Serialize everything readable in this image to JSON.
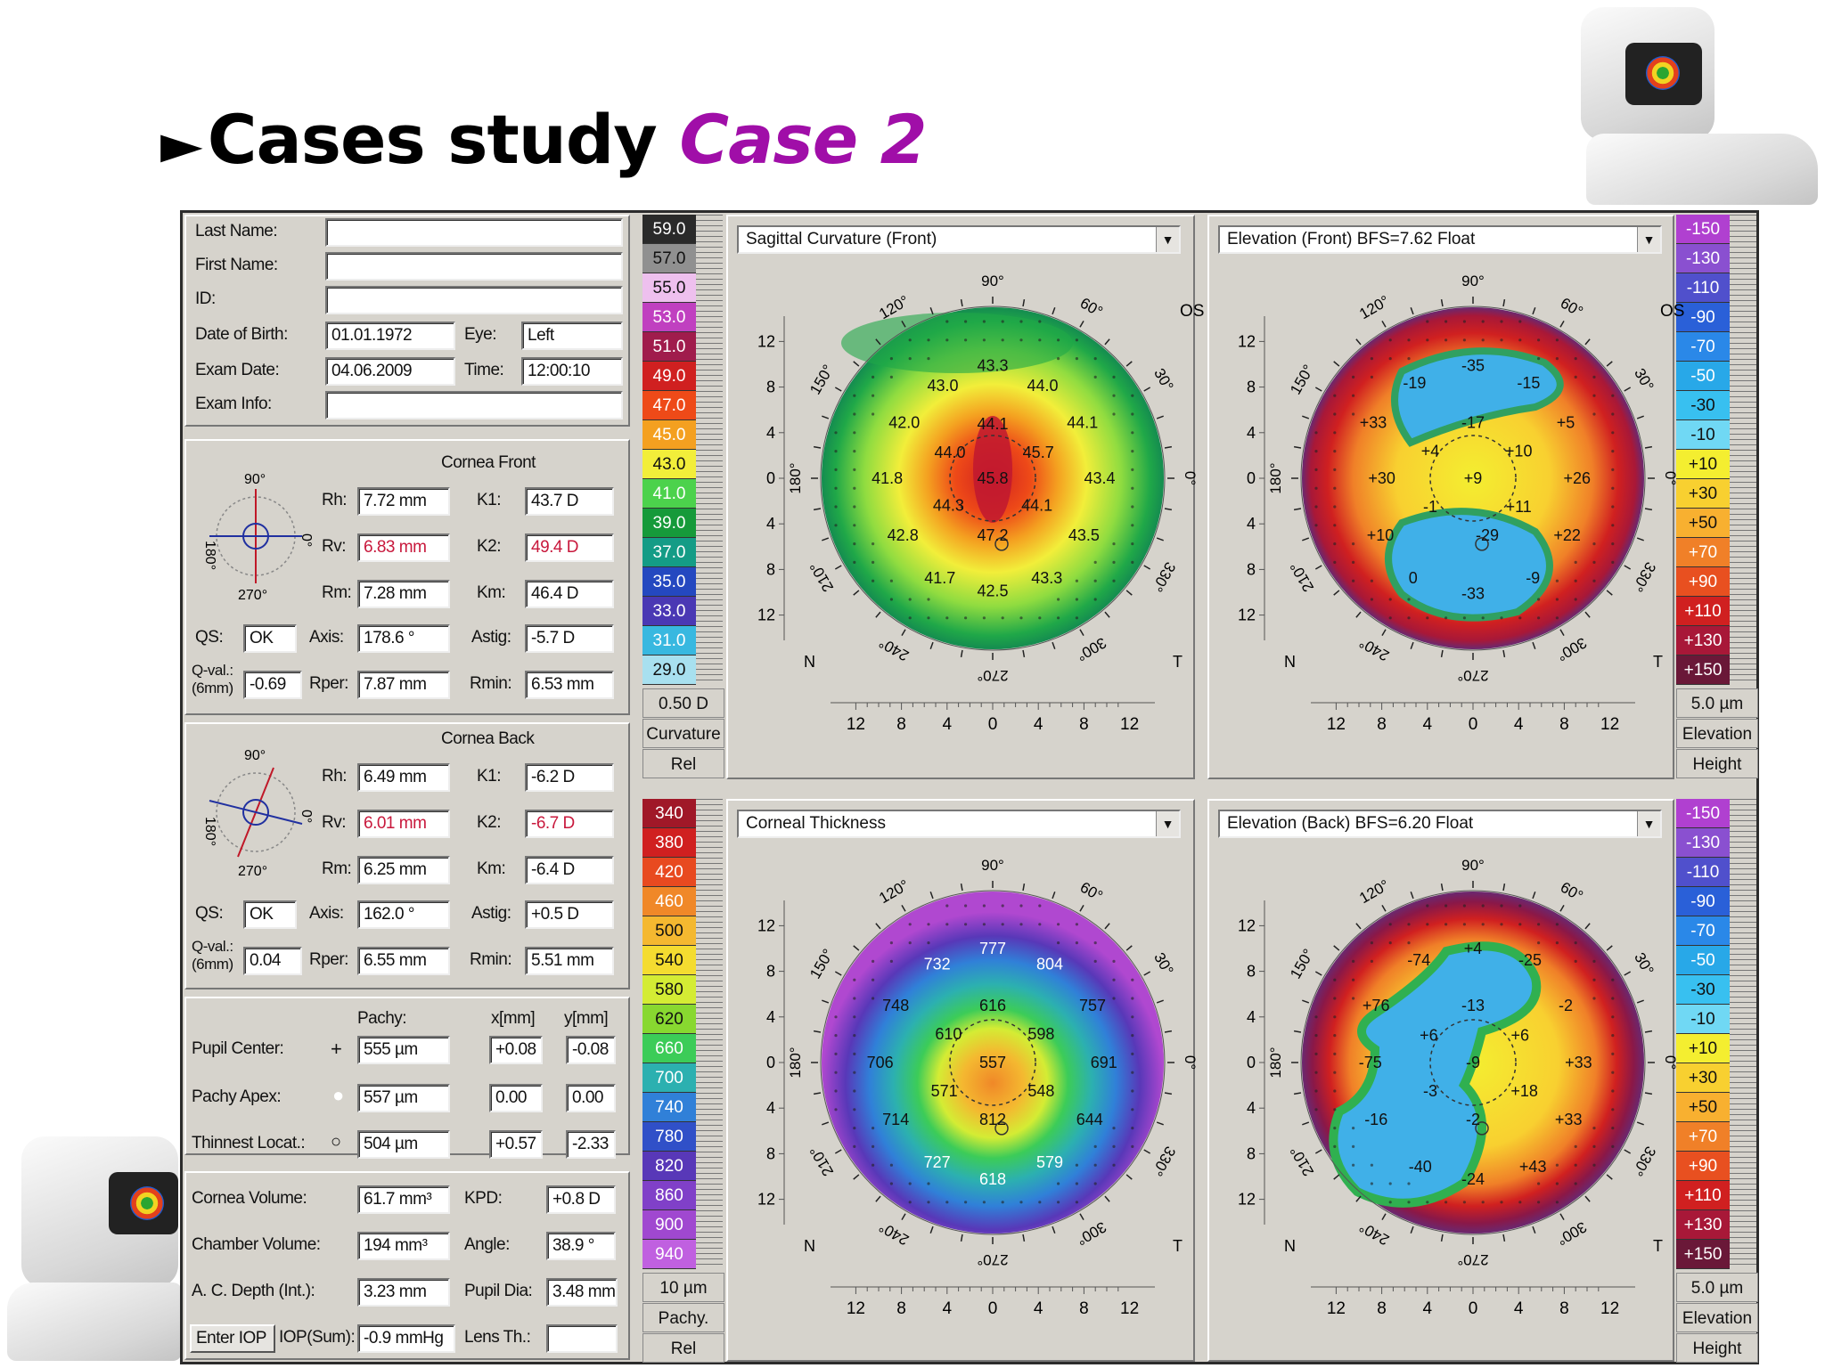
{
  "slide": {
    "title": "Cases study",
    "case": "Case 2"
  },
  "patient": {
    "labels": [
      "Last Name:",
      "First Name:",
      "ID:",
      "Date of Birth:",
      "Exam Date:",
      "Exam Info:"
    ],
    "last_name": "",
    "first_name": "",
    "id": "",
    "dob": "01.01.1972",
    "exam_date": "04.06.2009",
    "exam_info": "",
    "eye_label": "Eye:",
    "eye": "Left",
    "time_label": "Time:",
    "time": "12:00:10"
  },
  "front": {
    "title": "Cornea Front",
    "rh": "7.72 mm",
    "rv": "6.83 mm",
    "rm": "7.28 mm",
    "k1": "43.7 D",
    "k2": "49.4 D",
    "km": "46.4 D",
    "qs": "OK",
    "axis": "178.6 °",
    "astig": "-5.7 D",
    "qval": "-0.69",
    "rper": "7.87 mm",
    "rmin": "6.53 mm"
  },
  "back": {
    "title": "Cornea Back",
    "rh": "6.49 mm",
    "rv": "6.01 mm",
    "rm": "6.25 mm",
    "k1": "-6.2 D",
    "k2": "-6.7 D",
    "km": "-6.4 D",
    "qs": "OK",
    "axis": "162.0 °",
    "astig": "+0.5 D",
    "qval": "0.04",
    "rper": "6.55 mm",
    "rmin": "5.51 mm"
  },
  "labels": {
    "rh": "Rh:",
    "rv": "Rv:",
    "rm": "Rm:",
    "k1": "K1:",
    "k2": "K2:",
    "km": "Km:",
    "qs": "QS:",
    "axis": "Axis:",
    "astig": "Astig:",
    "qval": "Q-val.:",
    "qval2": "(6mm)",
    "rper": "Rper:",
    "rmin": "Rmin:"
  },
  "axes_mini": {
    "top": "90°",
    "left": "180°",
    "right": "0°",
    "bottom": "270°"
  },
  "pachy": {
    "col_pachy": "Pachy:",
    "col_x": "x[mm]",
    "col_y": "y[mm]",
    "rows": [
      {
        "label": "Pupil Center:",
        "pachy": "555 µm",
        "x": "+0.08",
        "y": "-0.08"
      },
      {
        "label": "Pachy Apex:",
        "pachy": "557 µm",
        "x": "0.00",
        "y": "0.00"
      },
      {
        "label": "Thinnest Locat.:",
        "pachy": "504 µm",
        "x": "+0.57",
        "y": "-2.33"
      }
    ]
  },
  "volumes": {
    "cornea_volume_label": "Cornea Volume:",
    "cornea_volume": "61.7 mm³",
    "kpd_label": "KPD:",
    "kpd": "+0.8 D",
    "chamber_volume_label": "Chamber Volume:",
    "chamber_volume": "194 mm³",
    "angle_label": "Angle:",
    "angle": "38.9 °",
    "acd_label": "A. C. Depth (Int.):",
    "acd": "3.23 mm",
    "pupil_label": "Pupil Dia:",
    "pupil": "3.48 mm",
    "enter_iop": "Enter IOP",
    "iop_label": "IOP(Sum):",
    "iop": "-0.9 mmHg",
    "lens_label": "Lens Th.:",
    "lens": ""
  },
  "colors": {
    "frame_bg": "#d6d3cc",
    "title_accent": "#a00ea8"
  },
  "scales": {
    "curvature": {
      "values": [
        "59.0",
        "57.0",
        "55.0",
        "53.0",
        "51.0",
        "49.0",
        "47.0",
        "45.0",
        "43.0",
        "41.0",
        "39.0",
        "37.0",
        "35.0",
        "33.0",
        "31.0",
        "29.0"
      ],
      "colors": [
        "#2a2a2a",
        "#909090",
        "#eec0ee",
        "#c040c0",
        "#a01c4c",
        "#d02020",
        "#ee4a18",
        "#f4a020",
        "#f2ee3a",
        "#4cd24c",
        "#169a3a",
        "#149c86",
        "#2448c0",
        "#4a38b4",
        "#38b8e0",
        "#a8e0ef"
      ],
      "step": "0.50 D",
      "name": "Curvature",
      "mode": "Rel"
    },
    "elevation": {
      "values": [
        "-150",
        "-130",
        "-110",
        "-90",
        "-70",
        "-50",
        "-30",
        "-10",
        "+10",
        "+30",
        "+50",
        "+70",
        "+90",
        "+110",
        "+130",
        "+150"
      ],
      "colors": [
        "#b040d0",
        "#8a50d0",
        "#5050cc",
        "#2a60d8",
        "#2a88e8",
        "#28a8e8",
        "#38c0f0",
        "#70d8f4",
        "#f4ee30",
        "#f8d030",
        "#f8b030",
        "#f08028",
        "#e85020",
        "#d02020",
        "#a81838",
        "#6a1838"
      ],
      "step": "5.0 µm",
      "name": "Elevation",
      "mode": "Height"
    },
    "pachy": {
      "values": [
        "340",
        "380",
        "420",
        "460",
        "500",
        "540",
        "580",
        "620",
        "660",
        "700",
        "740",
        "780",
        "820",
        "860",
        "900",
        "940"
      ],
      "colors": [
        "#a01828",
        "#d02020",
        "#e84a20",
        "#f08828",
        "#f4b830",
        "#f4dc30",
        "#d4ec34",
        "#88d830",
        "#3ccc58",
        "#2cb0b0",
        "#3080d8",
        "#3050c8",
        "#5838b8",
        "#8040c8",
        "#a048d0",
        "#c060e0"
      ],
      "step": "10 µm",
      "name": "Pachy.",
      "mode": "Rel"
    }
  },
  "maps": [
    {
      "title": "Sagittal Curvature (Front)",
      "eye": "OS",
      "n": "N",
      "t": "T",
      "labels": [
        {
          "t": "43.3",
          "x": 0,
          "y": -7.9
        },
        {
          "t": "43.0",
          "x": -3.5,
          "y": -6.5
        },
        {
          "t": "44.0",
          "x": 3.5,
          "y": -6.5
        },
        {
          "t": "42.0",
          "x": -6.2,
          "y": -3.9
        },
        {
          "t": "44.1",
          "x": 6.3,
          "y": -3.9
        },
        {
          "t": "44.1",
          "x": 0,
          "y": -3.8
        },
        {
          "t": "44.0",
          "x": -3.0,
          "y": -1.8
        },
        {
          "t": "45.7",
          "x": 3.2,
          "y": -1.8
        },
        {
          "t": "41.8",
          "x": -7.4,
          "y": 0
        },
        {
          "t": "45.8",
          "x": 0,
          "y": 0
        },
        {
          "t": "43.4",
          "x": 7.5,
          "y": 0
        },
        {
          "t": "44.3",
          "x": -3.1,
          "y": 1.9
        },
        {
          "t": "44.1",
          "x": 3.1,
          "y": 1.9
        },
        {
          "t": "47.2",
          "x": 0,
          "y": 4
        },
        {
          "t": "42.8",
          "x": -6.3,
          "y": 4
        },
        {
          "t": "43.5",
          "x": 6.4,
          "y": 4
        },
        {
          "t": "41.7",
          "x": -3.7,
          "y": 7
        },
        {
          "t": "42.5",
          "x": 0,
          "y": 7.9
        },
        {
          "t": "43.3",
          "x": 3.8,
          "y": 7
        }
      ]
    },
    {
      "title": "Elevation (Front)  BFS=7.62 Float",
      "eye": "OS",
      "n": "N",
      "t": "T",
      "labels": [
        {
          "t": "-35",
          "x": 0,
          "y": -7.9
        },
        {
          "t": "-19",
          "x": -4.1,
          "y": -6.7
        },
        {
          "t": "-15",
          "x": 3.9,
          "y": -6.7
        },
        {
          "t": "+33",
          "x": -7.0,
          "y": -3.9
        },
        {
          "t": "-17",
          "x": 0,
          "y": -3.9
        },
        {
          "t": "+5",
          "x": 6.5,
          "y": -3.9
        },
        {
          "t": "+4",
          "x": -3.0,
          "y": -1.9
        },
        {
          "t": "+10",
          "x": 3.2,
          "y": -1.9
        },
        {
          "t": "+30",
          "x": -6.4,
          "y": 0
        },
        {
          "t": "+9",
          "x": 0,
          "y": 0
        },
        {
          "t": "+26",
          "x": 7.3,
          "y": 0
        },
        {
          "t": "-1",
          "x": -3.0,
          "y": 2
        },
        {
          "t": "+11",
          "x": 3.2,
          "y": 2
        },
        {
          "t": "+10",
          "x": -6.5,
          "y": 4
        },
        {
          "t": "-29",
          "x": 1.0,
          "y": 4
        },
        {
          "t": "+22",
          "x": 6.6,
          "y": 4
        },
        {
          "t": "0",
          "x": -4.2,
          "y": 7
        },
        {
          "t": "-33",
          "x": 0,
          "y": 8.1
        },
        {
          "t": "-9",
          "x": 4.2,
          "y": 7
        }
      ]
    },
    {
      "title": "Corneal Thickness",
      "eye": "",
      "n": "N",
      "t": "T",
      "labels": [
        {
          "t": "777",
          "x": 0,
          "y": -8
        },
        {
          "t": "732",
          "x": -3.9,
          "y": -6.9
        },
        {
          "t": "804",
          "x": 4.0,
          "y": -6.9
        },
        {
          "t": "748",
          "x": -6.8,
          "y": -4
        },
        {
          "t": "616",
          "x": 0,
          "y": -4
        },
        {
          "t": "757",
          "x": 7.0,
          "y": -4
        },
        {
          "t": "610",
          "x": -3.1,
          "y": -2
        },
        {
          "t": "598",
          "x": 3.4,
          "y": -2
        },
        {
          "t": "706",
          "x": -7.9,
          "y": 0
        },
        {
          "t": "557",
          "x": 0,
          "y": 0
        },
        {
          "t": "691",
          "x": 7.8,
          "y": 0
        },
        {
          "t": "571",
          "x": -3.4,
          "y": 2
        },
        {
          "t": "548",
          "x": 3.4,
          "y": 2
        },
        {
          "t": "714",
          "x": -6.8,
          "y": 4
        },
        {
          "t": "812",
          "x": 0,
          "y": 4
        },
        {
          "t": "644",
          "x": 6.8,
          "y": 4
        },
        {
          "t": "727",
          "x": -3.9,
          "y": 7
        },
        {
          "t": "618",
          "x": 0,
          "y": 8.2
        },
        {
          "t": "579",
          "x": 4.0,
          "y": 7
        }
      ]
    },
    {
      "title": "Elevation (Back)  BFS=6.20 Float",
      "eye": "",
      "n": "N",
      "t": "T",
      "labels": [
        {
          "t": "+4",
          "x": 0,
          "y": -8
        },
        {
          "t": "-74",
          "x": -3.8,
          "y": -7.2
        },
        {
          "t": "-25",
          "x": 4.0,
          "y": -7.2
        },
        {
          "t": "+76",
          "x": -6.8,
          "y": -4
        },
        {
          "t": "-13",
          "x": 0,
          "y": -4
        },
        {
          "t": "-2",
          "x": 6.5,
          "y": -4
        },
        {
          "t": "+6",
          "x": -3.1,
          "y": -1.9
        },
        {
          "t": "+6",
          "x": 3.3,
          "y": -1.9
        },
        {
          "t": "-75",
          "x": -7.2,
          "y": 0
        },
        {
          "t": "-9",
          "x": 0,
          "y": 0
        },
        {
          "t": "+33",
          "x": 7.4,
          "y": 0
        },
        {
          "t": "-3",
          "x": -3.0,
          "y": 2
        },
        {
          "t": "+18",
          "x": 3.6,
          "y": 2
        },
        {
          "t": "-16",
          "x": -6.8,
          "y": 4
        },
        {
          "t": "-2",
          "x": 0,
          "y": 4
        },
        {
          "t": "+33",
          "x": 6.7,
          "y": 4
        },
        {
          "t": "-40",
          "x": -3.7,
          "y": 7.3
        },
        {
          "t": "-24",
          "x": 0,
          "y": 8.2
        },
        {
          "t": "+43",
          "x": 4.2,
          "y": 7.3
        }
      ]
    }
  ],
  "map_axes": {
    "ticks": [
      "12",
      "8",
      "4",
      "0",
      "4",
      "8",
      "12"
    ],
    "angles": [
      "90°",
      "60°",
      "30°",
      "0°",
      "330°",
      "300°",
      "270°",
      "240°",
      "210°",
      "180°",
      "150°",
      "120°"
    ]
  }
}
